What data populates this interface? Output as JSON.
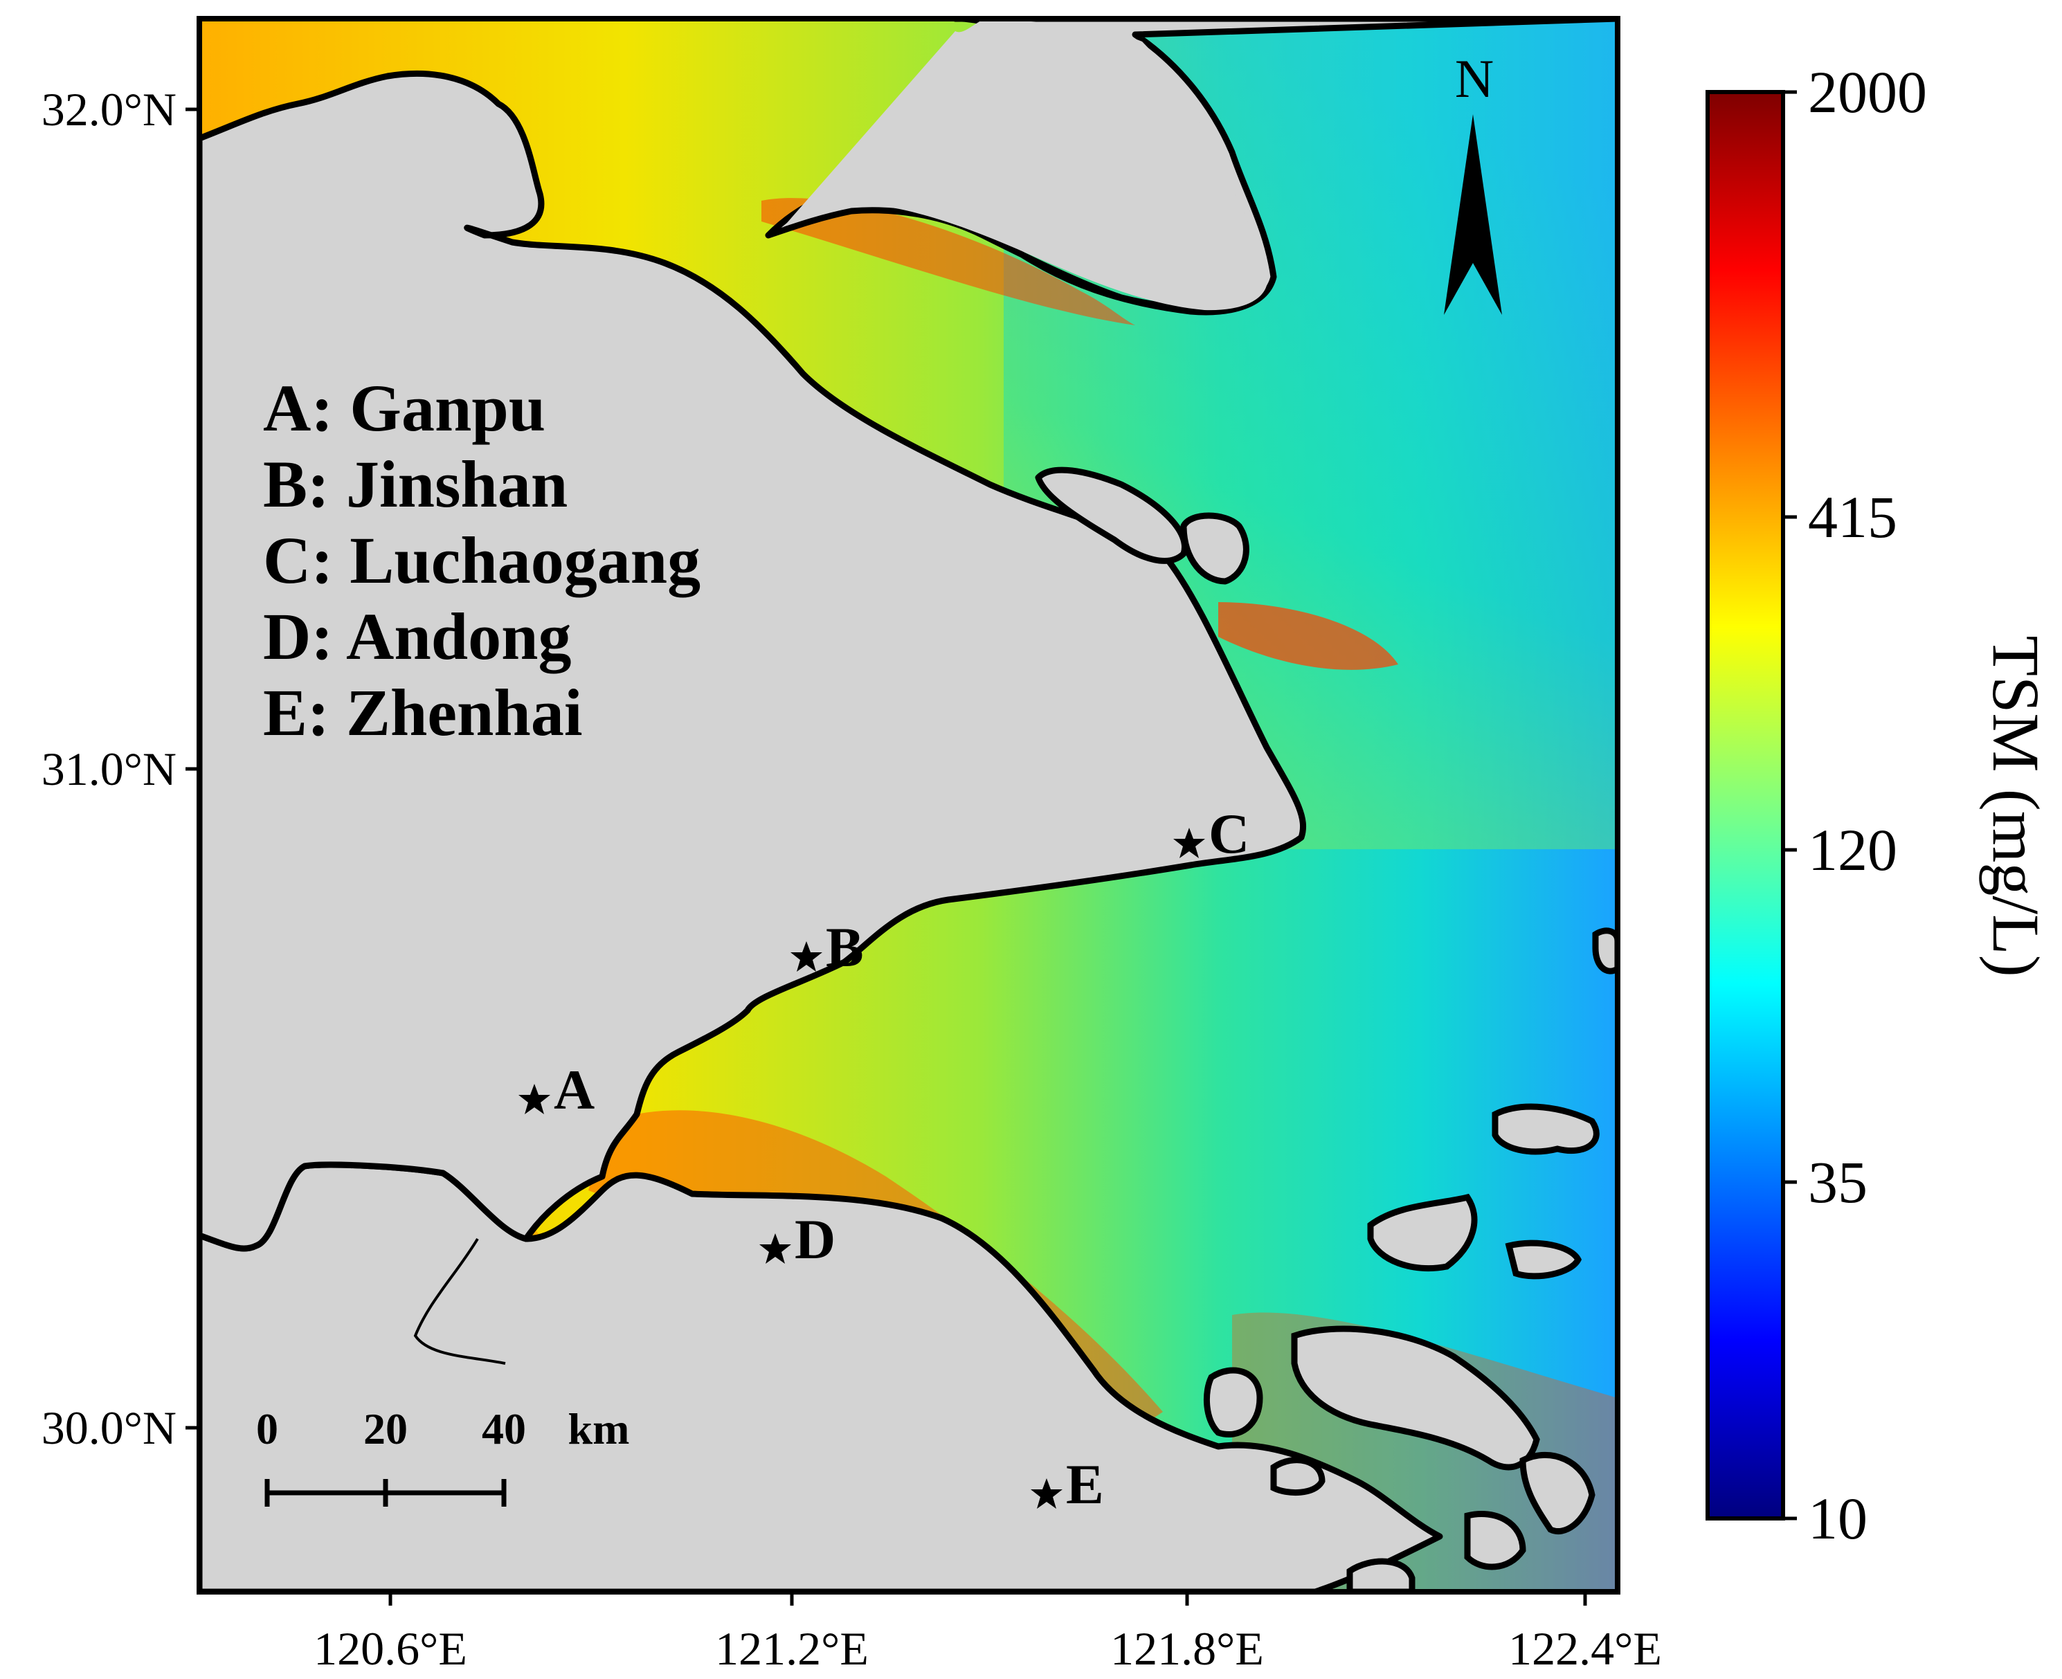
{
  "map": {
    "lat_labels": [
      "32.0°N",
      "31.0°N",
      "30.0°N"
    ],
    "lon_labels": [
      "120.6°E",
      "121.2°E",
      "121.8°E",
      "122.4°E"
    ],
    "north_arrow": "N",
    "legend": [
      "A: Ganpu",
      "B: Jinshan",
      "C: Luchaogang",
      "D: Andong",
      "E: Zhenhai"
    ],
    "sites": [
      {
        "id": "A",
        "name": "Ganpu"
      },
      {
        "id": "B",
        "name": "Jinshan"
      },
      {
        "id": "C",
        "name": "Luchaogang"
      },
      {
        "id": "D",
        "name": "Andong"
      },
      {
        "id": "E",
        "name": "Zhenhai"
      }
    ],
    "scale_bar": {
      "ticks": [
        "0",
        "20",
        "40"
      ],
      "unit": "km"
    }
  },
  "colorbar": {
    "title": "TSM (mg/L)",
    "tick_labels": [
      "2000",
      "415",
      "120",
      "35",
      "10"
    ],
    "colors": [
      "#7f0000",
      "#ff0000",
      "#ff8000",
      "#ffff00",
      "#80ff80",
      "#00ffff",
      "#0080ff",
      "#0000ff",
      "#00007f"
    ]
  },
  "colors": {
    "land": "#d3d3d3",
    "coastline": "#000000",
    "offshore_water": "#1aa3ff",
    "high_turbidity": "#ff3000"
  }
}
